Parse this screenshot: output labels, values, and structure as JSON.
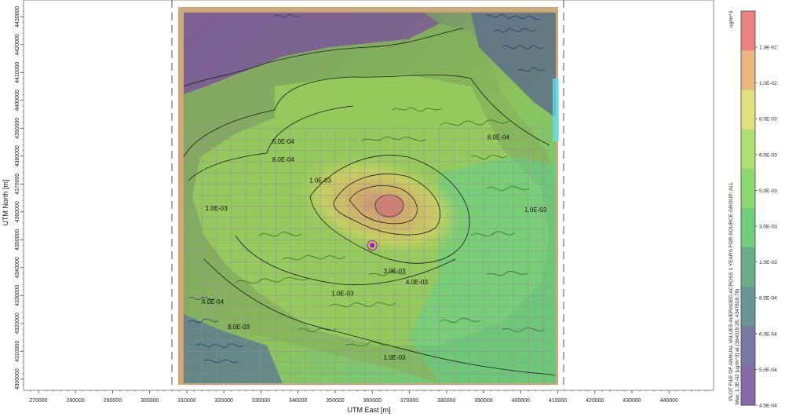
{
  "chart_data": {
    "type": "heatmap",
    "xlabel": "UTM East [m]",
    "ylabel": "UTM North [m]",
    "xlim": [
      266000,
      452000
    ],
    "ylim": [
      4296000,
      4436000
    ],
    "x_ticks": [
      270000,
      280000,
      290000,
      300000,
      310000,
      320000,
      330000,
      340000,
      350000,
      360000,
      370000,
      380000,
      390000,
      400000,
      410000,
      420000,
      430000,
      440000
    ],
    "y_ticks": [
      4300000,
      4310000,
      4320000,
      4330000,
      4340000,
      4350000,
      4360000,
      4370000,
      4380000,
      4390000,
      4400000,
      4410000,
      4420000,
      4430000
    ],
    "grid_extent": {
      "x": [
        310000,
        408000
      ],
      "y": [
        4298000,
        4390000
      ]
    },
    "source_location": {
      "x": 360000,
      "y": 4348000
    },
    "contour_labels": [
      {
        "text": "6.0E-04",
        "x": 336000,
        "y": 4384500
      },
      {
        "text": "8.0E-04",
        "x": 394000,
        "y": 4386000
      },
      {
        "text": "8.0E-04",
        "x": 336000,
        "y": 4378000
      },
      {
        "text": "1.0E-03",
        "x": 346000,
        "y": 4370500
      },
      {
        "text": "1.0E-03",
        "x": 318000,
        "y": 4360500
      },
      {
        "text": "1.0E-03",
        "x": 404000,
        "y": 4360000
      },
      {
        "text": "8.0E-04",
        "x": 317000,
        "y": 4327000
      },
      {
        "text": "8.0E-03",
        "x": 324000,
        "y": 4318000
      },
      {
        "text": "1.0E-03",
        "x": 352000,
        "y": 4330000
      },
      {
        "text": "3.0E-03",
        "x": 366000,
        "y": 4338000
      },
      {
        "text": "4.0E-03",
        "x": 372000,
        "y": 4334000
      },
      {
        "text": "1.0E-03",
        "x": 366000,
        "y": 4307000
      }
    ],
    "colorbar": {
      "unit": "ug/m^3",
      "ticks": [
        "1.3E-02",
        "1.0E-02",
        "8.0E-03",
        "6.0E-03",
        "5.0E-03",
        "3.0E-03",
        "1.0E-03",
        "8.0E-04",
        "6.0E-04",
        "5.0E-04",
        "4.5E-04"
      ],
      "colors": [
        "#e87474",
        "#e6b072",
        "#dddd70",
        "#a6dc62",
        "#7fd562",
        "#62c96b",
        "#5aa47a",
        "#5a8a8a",
        "#6a6a9a",
        "#7b5aa0"
      ]
    },
    "caption": "PLOT FILE OF ANNUAL VALUES AVERAGED ACROSS 1 YEARS FOR SOURCE GROUP: ALL",
    "max_text": "Max: 1.3E-02 [ug/m^3] at (364019.35, 4347818.79)"
  }
}
